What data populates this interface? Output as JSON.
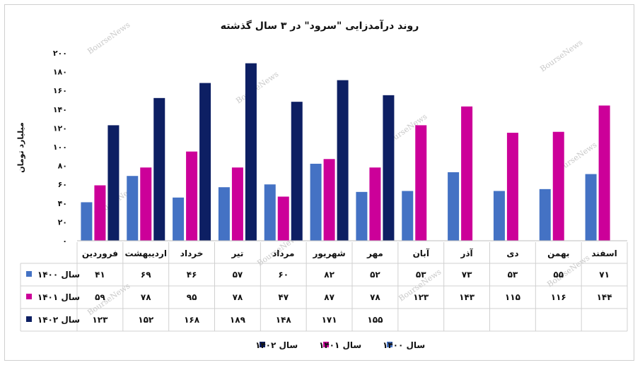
{
  "chart_data": {
    "type": "bar",
    "title": "روند درآمدزایی \"سرود\" در ۳ سال گذشته",
    "ylabel": "میلیارد تومان",
    "ylim": [
      0,
      200
    ],
    "yticks": [
      "۰",
      "۲۰",
      "۴۰",
      "۶۰",
      "۸۰",
      "۱۰۰",
      "۱۲۰",
      "۱۴۰",
      "۱۶۰",
      "۱۸۰",
      "۲۰۰"
    ],
    "categories": [
      "فروردین",
      "اردیبهشت",
      "خرداد",
      "تیر",
      "مرداد",
      "شهریور",
      "مهر",
      "آبان",
      "آذر",
      "دی",
      "بهمن",
      "اسفند"
    ],
    "series": [
      {
        "name": "سال ۱۴۰۰",
        "color": "#4472c4",
        "values": [
          41,
          69,
          46,
          57,
          60,
          82,
          52,
          53,
          73,
          53,
          55,
          71
        ],
        "labels": [
          "۴۱",
          "۶۹",
          "۴۶",
          "۵۷",
          "۶۰",
          "۸۲",
          "۵۲",
          "۵۳",
          "۷۳",
          "۵۳",
          "۵۵",
          "۷۱"
        ]
      },
      {
        "name": "سال ۱۴۰۱",
        "color": "#cc0099",
        "values": [
          59,
          78,
          95,
          78,
          47,
          87,
          78,
          123,
          143,
          115,
          116,
          144
        ],
        "labels": [
          "۵۹",
          "۷۸",
          "۹۵",
          "۷۸",
          "۴۷",
          "۸۷",
          "۷۸",
          "۱۲۳",
          "۱۴۳",
          "۱۱۵",
          "۱۱۶",
          "۱۴۴"
        ]
      },
      {
        "name": "سال ۱۴۰۲",
        "color": "#0d1f63",
        "values": [
          123,
          152,
          168,
          189,
          148,
          171,
          155,
          null,
          null,
          null,
          null,
          null
        ],
        "labels": [
          "۱۲۳",
          "۱۵۲",
          "۱۶۸",
          "۱۸۹",
          "۱۴۸",
          "۱۷۱",
          "۱۵۵",
          "",
          "",
          "",
          "",
          ""
        ]
      }
    ],
    "grid": false,
    "legend": "bottom",
    "watermark": "BourseNews"
  }
}
